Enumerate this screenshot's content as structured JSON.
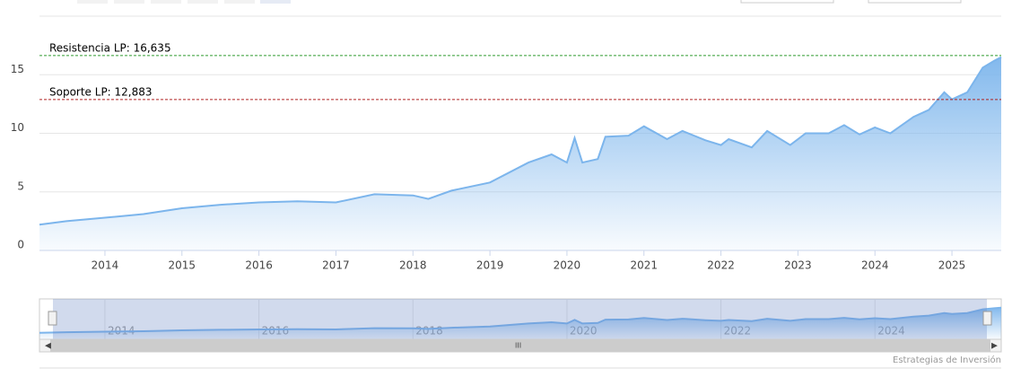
{
  "chart_data": {
    "type": "area",
    "x": [
      2013.15,
      2013.5,
      2014.0,
      2014.5,
      2015.0,
      2015.5,
      2016.0,
      2016.5,
      2017.0,
      2017.5,
      2018.0,
      2018.2,
      2018.5,
      2019.0,
      2019.5,
      2019.8,
      2020.0,
      2020.1,
      2020.2,
      2020.4,
      2020.5,
      2020.8,
      2021.0,
      2021.3,
      2021.5,
      2021.8,
      2022.0,
      2022.1,
      2022.4,
      2022.6,
      2022.9,
      2023.1,
      2023.4,
      2023.6,
      2023.8,
      2024.0,
      2024.2,
      2024.5,
      2024.7,
      2024.9,
      2025.0,
      2025.2,
      2025.4,
      2025.55,
      2025.64
    ],
    "series": [
      {
        "color": "#7cb5ec",
        "values": [
          2.2,
          2.5,
          2.8,
          3.1,
          3.6,
          3.9,
          4.1,
          4.2,
          4.1,
          4.8,
          4.7,
          4.4,
          5.1,
          5.8,
          7.5,
          8.2,
          7.5,
          9.6,
          7.5,
          7.8,
          9.7,
          9.8,
          10.6,
          9.5,
          10.2,
          9.4,
          9.0,
          9.5,
          8.8,
          10.2,
          9.0,
          10.0,
          10.0,
          10.7,
          9.9,
          10.5,
          10.0,
          11.4,
          12.0,
          13.5,
          12.9,
          13.5,
          15.6,
          16.2,
          16.5
        ]
      }
    ],
    "xlim": [
      2013.15,
      2025.64
    ],
    "xticks": [
      2014,
      2015,
      2016,
      2017,
      2018,
      2019,
      2020,
      2021,
      2022,
      2023,
      2024,
      2025
    ],
    "ylim": [
      0,
      20
    ],
    "yticks": [
      0,
      5,
      10,
      15
    ],
    "grid": true,
    "plot_lines": [
      {
        "label": "Resistencia LP: 16,635",
        "value": 16.635,
        "color": "#2e9a2e"
      },
      {
        "label": "Soporte LP: 12,883",
        "value": 12.883,
        "color": "#b02020"
      }
    ],
    "navigator_xticks": [
      2014,
      2016,
      2018,
      2020,
      2022,
      2024
    ],
    "credits": "Estrategias de Inversión"
  }
}
